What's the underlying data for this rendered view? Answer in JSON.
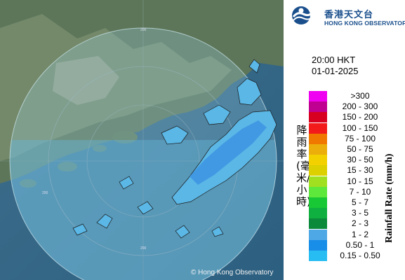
{
  "logo": {
    "chinese": "香港天文台",
    "english": "HONG KONG OBSERVATORY"
  },
  "time_label": "20:00 HKT",
  "date_label": "01-01-2025",
  "copyright": "© Hong Kong Observatory",
  "range_ring_labels": [
    "200",
    "200",
    "200",
    "200"
  ],
  "legend": {
    "unit_chinese": "降雨率(毫米/小時)",
    "unit_english": "Rainfall Rate (mm/h)",
    "items": [
      {
        "label": ">300",
        "color": "#f000f0"
      },
      {
        "label": "200 - 300",
        "color": "#c00090"
      },
      {
        "label": "150 - 200",
        "color": "#d80020"
      },
      {
        "label": "100 - 150",
        "color": "#f21a1a"
      },
      {
        "label": "75 - 100",
        "color": "#f07800"
      },
      {
        "label": "50 - 75",
        "color": "#ecae0a"
      },
      {
        "label": "30 - 50",
        "color": "#f3d000"
      },
      {
        "label": "15 - 30",
        "color": "#dcd000"
      },
      {
        "label": "10 - 15",
        "color": "#a0e020"
      },
      {
        "label": "7 - 10",
        "color": "#5ee83c"
      },
      {
        "label": "5 - 7",
        "color": "#18c834"
      },
      {
        "label": "3 - 5",
        "color": "#10b040"
      },
      {
        "label": "2 - 3",
        "color": "#0c8a3c"
      },
      {
        "label": "1 - 2",
        "color": "#4fa8e6"
      },
      {
        "label": "0.50 - 1",
        "color": "#188ee8"
      },
      {
        "label": "0.15 - 0.50",
        "color": "#28bdf2"
      }
    ]
  }
}
